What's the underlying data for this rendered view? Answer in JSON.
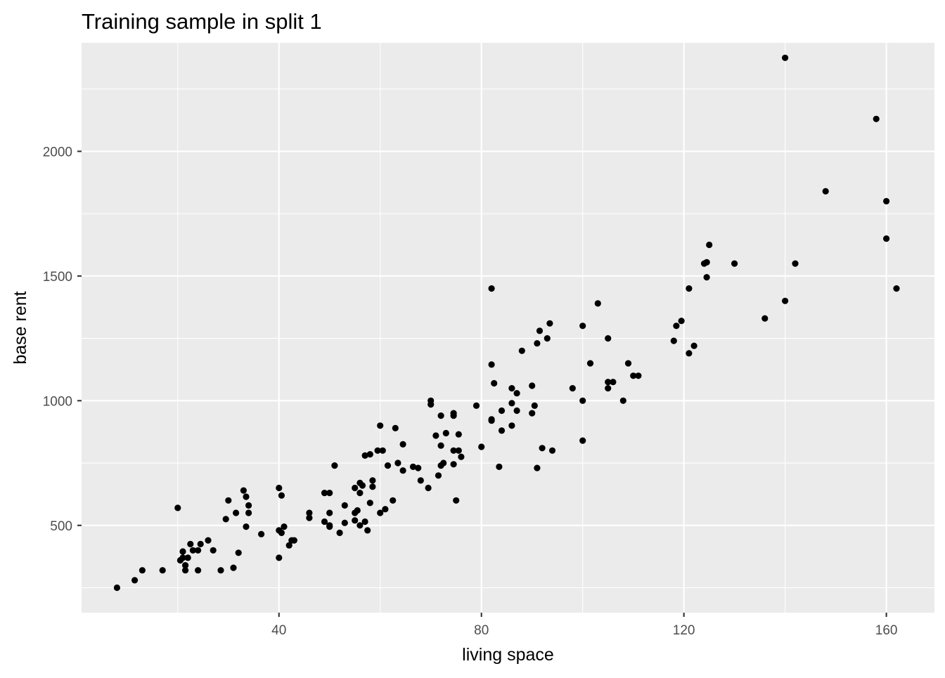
{
  "chart_data": {
    "type": "scatter",
    "title": "Training sample in split 1",
    "xlabel": "living space",
    "ylabel": "base rent",
    "xlim": [
      1.0,
      169.5
    ],
    "ylim": [
      150,
      2435
    ],
    "x_ticks": [
      40,
      80,
      120,
      160
    ],
    "y_ticks": [
      500,
      1000,
      1500,
      2000
    ],
    "x_minor_ticks": [
      20,
      60,
      100,
      140
    ],
    "y_minor_ticks": [
      250,
      750,
      1250,
      1750,
      2250
    ],
    "grid": true,
    "point_color": "#000000",
    "panel_color": "#ebebeb",
    "points": [
      [
        8,
        250
      ],
      [
        11.5,
        280
      ],
      [
        13,
        320
      ],
      [
        17,
        320
      ],
      [
        20,
        570
      ],
      [
        20.5,
        360
      ],
      [
        21,
        370
      ],
      [
        21,
        395
      ],
      [
        21.5,
        340
      ],
      [
        21.5,
        320
      ],
      [
        22,
        370
      ],
      [
        22.5,
        425
      ],
      [
        23,
        400
      ],
      [
        24,
        400
      ],
      [
        24,
        320
      ],
      [
        24.5,
        425
      ],
      [
        26,
        440
      ],
      [
        27,
        400
      ],
      [
        28.5,
        320
      ],
      [
        29.5,
        525
      ],
      [
        30,
        600
      ],
      [
        31,
        330
      ],
      [
        31.5,
        550
      ],
      [
        32,
        390
      ],
      [
        33,
        640
      ],
      [
        33.5,
        615
      ],
      [
        33.5,
        495
      ],
      [
        34,
        580
      ],
      [
        34,
        550
      ],
      [
        36.5,
        465
      ],
      [
        40,
        650
      ],
      [
        40,
        480
      ],
      [
        40,
        370
      ],
      [
        40.5,
        470
      ],
      [
        40.5,
        620
      ],
      [
        41,
        495
      ],
      [
        42,
        420
      ],
      [
        42.5,
        440
      ],
      [
        43,
        440
      ],
      [
        46,
        550
      ],
      [
        46,
        530
      ],
      [
        49,
        630
      ],
      [
        49,
        515
      ],
      [
        50,
        630
      ],
      [
        50,
        500
      ],
      [
        50,
        550
      ],
      [
        50,
        495
      ],
      [
        51,
        740
      ],
      [
        52,
        470
      ],
      [
        53,
        510
      ],
      [
        53,
        580
      ],
      [
        55,
        550
      ],
      [
        55,
        520
      ],
      [
        55,
        650
      ],
      [
        55.5,
        560
      ],
      [
        56,
        500
      ],
      [
        56,
        630
      ],
      [
        56,
        670
      ],
      [
        56.5,
        660
      ],
      [
        57,
        515
      ],
      [
        57,
        780
      ],
      [
        57.5,
        480
      ],
      [
        58,
        785
      ],
      [
        58,
        590
      ],
      [
        58.5,
        680
      ],
      [
        58.5,
        655
      ],
      [
        59.5,
        800
      ],
      [
        60,
        550
      ],
      [
        60,
        900
      ],
      [
        60.5,
        800
      ],
      [
        61,
        565
      ],
      [
        61.5,
        740
      ],
      [
        62.5,
        600
      ],
      [
        63,
        890
      ],
      [
        63.5,
        750
      ],
      [
        64.5,
        825
      ],
      [
        64.5,
        720
      ],
      [
        66.5,
        735
      ],
      [
        67.5,
        730
      ],
      [
        68,
        680
      ],
      [
        69.5,
        650
      ],
      [
        70,
        1000
      ],
      [
        70,
        985
      ],
      [
        71,
        860
      ],
      [
        71.5,
        700
      ],
      [
        72,
        820
      ],
      [
        72,
        740
      ],
      [
        72,
        940
      ],
      [
        72.5,
        750
      ],
      [
        73,
        870
      ],
      [
        74.5,
        950
      ],
      [
        74.5,
        940
      ],
      [
        74.5,
        800
      ],
      [
        74.5,
        745
      ],
      [
        75,
        600
      ],
      [
        75.5,
        865
      ],
      [
        75.5,
        800
      ],
      [
        76,
        775
      ],
      [
        79,
        980
      ],
      [
        80,
        815
      ],
      [
        82,
        1450
      ],
      [
        82,
        1145
      ],
      [
        82,
        925
      ],
      [
        82,
        920
      ],
      [
        82.5,
        1070
      ],
      [
        83.5,
        735
      ],
      [
        84,
        880
      ],
      [
        84,
        960
      ],
      [
        86,
        900
      ],
      [
        86,
        990
      ],
      [
        86,
        1050
      ],
      [
        87,
        960
      ],
      [
        87,
        1030
      ],
      [
        88,
        1200
      ],
      [
        90,
        950
      ],
      [
        90,
        1060
      ],
      [
        90.5,
        980
      ],
      [
        91,
        730
      ],
      [
        91,
        1230
      ],
      [
        91.5,
        1280
      ],
      [
        92,
        810
      ],
      [
        93,
        1250
      ],
      [
        93.5,
        1310
      ],
      [
        94,
        800
      ],
      [
        98,
        1050
      ],
      [
        100,
        1300
      ],
      [
        100,
        1000
      ],
      [
        100,
        840
      ],
      [
        101.5,
        1150
      ],
      [
        103,
        1390
      ],
      [
        105,
        1250
      ],
      [
        105,
        1075
      ],
      [
        105,
        1050
      ],
      [
        106,
        1075
      ],
      [
        108,
        1000
      ],
      [
        109,
        1150
      ],
      [
        110,
        1100
      ],
      [
        111,
        1100
      ],
      [
        118,
        1240
      ],
      [
        118.5,
        1300
      ],
      [
        119.5,
        1320
      ],
      [
        121,
        1450
      ],
      [
        121,
        1190
      ],
      [
        122,
        1220
      ],
      [
        124,
        1550
      ],
      [
        124.5,
        1555
      ],
      [
        124.5,
        1495
      ],
      [
        124.5,
        1555
      ],
      [
        125,
        1625
      ],
      [
        130,
        1550
      ],
      [
        136,
        1330
      ],
      [
        140,
        2375
      ],
      [
        140,
        1400
      ],
      [
        142,
        1550
      ],
      [
        148,
        1840
      ],
      [
        158,
        2130
      ],
      [
        160,
        1800
      ],
      [
        160,
        1650
      ],
      [
        162,
        1450
      ]
    ]
  }
}
